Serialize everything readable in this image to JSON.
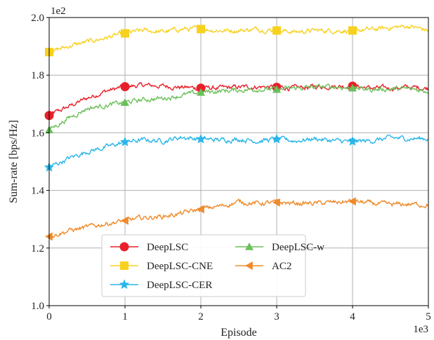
{
  "chart_data": {
    "type": "line",
    "xlabel": "Episode",
    "ylabel": "Sum-rate [bps/Hz]",
    "x_multiplier": "1e3",
    "y_multiplier": "1e2",
    "xlim": [
      0,
      5
    ],
    "ylim": [
      1.0,
      2.0
    ],
    "xticks": [
      "0",
      "1",
      "2",
      "3",
      "4",
      "5"
    ],
    "yticks": [
      "1.0",
      "1.2",
      "1.4",
      "1.6",
      "1.8",
      "2.0"
    ],
    "grid": true,
    "legend_position": "bottom-center",
    "x": [
      0,
      0.25,
      0.5,
      0.75,
      1.0,
      1.25,
      1.5,
      1.75,
      2.0,
      2.25,
      2.5,
      2.75,
      3.0,
      3.25,
      3.5,
      3.75,
      4.0,
      4.25,
      4.5,
      4.75,
      5.0
    ],
    "series": [
      {
        "name": "DeepLSC",
        "color": "#e8202a",
        "marker": "circle",
        "values": [
          1.66,
          1.69,
          1.72,
          1.745,
          1.76,
          1.765,
          1.762,
          1.758,
          1.755,
          1.755,
          1.758,
          1.76,
          1.758,
          1.755,
          1.76,
          1.762,
          1.762,
          1.755,
          1.755,
          1.758,
          1.755
        ]
      },
      {
        "name": "DeepLSC-CNE",
        "color": "#f7d11e",
        "marker": "square",
        "values": [
          1.88,
          1.9,
          1.915,
          1.93,
          1.945,
          1.955,
          1.95,
          1.96,
          1.96,
          1.955,
          1.955,
          1.96,
          1.955,
          1.95,
          1.955,
          1.955,
          1.955,
          1.958,
          1.965,
          1.97,
          1.955
        ]
      },
      {
        "name": "DeepLSC-CER",
        "color": "#2ab6e8",
        "marker": "star",
        "values": [
          1.48,
          1.51,
          1.535,
          1.55,
          1.568,
          1.575,
          1.572,
          1.585,
          1.578,
          1.575,
          1.578,
          1.572,
          1.578,
          1.572,
          1.58,
          1.572,
          1.57,
          1.572,
          1.582,
          1.58,
          1.58
        ]
      },
      {
        "name": "DeepLSC-w",
        "color": "#6ac05a",
        "marker": "triangle-up",
        "values": [
          1.61,
          1.65,
          1.685,
          1.695,
          1.705,
          1.715,
          1.72,
          1.73,
          1.74,
          1.745,
          1.748,
          1.752,
          1.75,
          1.755,
          1.758,
          1.76,
          1.755,
          1.75,
          1.752,
          1.752,
          1.745
        ]
      },
      {
        "name": "AC2",
        "color": "#f08a2a",
        "marker": "triangle-left",
        "values": [
          1.24,
          1.26,
          1.272,
          1.285,
          1.295,
          1.305,
          1.31,
          1.32,
          1.335,
          1.345,
          1.36,
          1.355,
          1.358,
          1.355,
          1.355,
          1.358,
          1.362,
          1.355,
          1.35,
          1.352,
          1.35
        ]
      }
    ]
  }
}
